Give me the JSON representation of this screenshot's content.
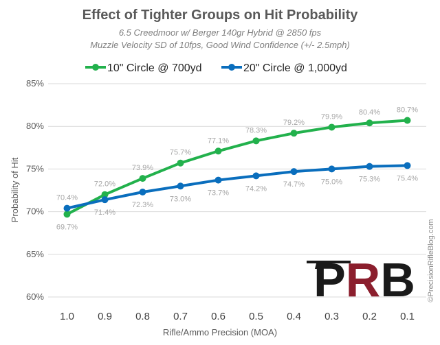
{
  "chart_data": {
    "type": "line",
    "title": "Effect of Tighter Groups on Hit Probability",
    "subtitle_lines": [
      "6.5 Creedmoor w/ Berger 140gr Hybrid @ 2850 fps",
      "Muzzle Velocity SD of 10fps, Good Wind Confidence (+/- 2.5mph)"
    ],
    "xlabel": "Rifle/Ammo Precision (MOA)",
    "ylabel": "Probability of Hit",
    "categories": [
      "1.0",
      "0.9",
      "0.8",
      "0.7",
      "0.6",
      "0.5",
      "0.4",
      "0.3",
      "0.2",
      "0.1"
    ],
    "ylim": [
      60,
      85
    ],
    "yticks": [
      60,
      65,
      70,
      75,
      80,
      85
    ],
    "ytick_labels": [
      "60%",
      "65%",
      "70%",
      "75%",
      "80%",
      "85%"
    ],
    "grid": true,
    "legend_position": "top",
    "series": [
      {
        "name": "10\" Circle @ 700yd",
        "color": "#22b14c",
        "values": [
          69.7,
          72.0,
          73.9,
          75.7,
          77.1,
          78.3,
          79.2,
          79.9,
          80.4,
          80.7
        ],
        "labels": [
          "69.7%",
          "72.0%",
          "73.9%",
          "75.7%",
          "77.1%",
          "78.3%",
          "79.2%",
          "79.9%",
          "80.4%",
          "80.7%"
        ]
      },
      {
        "name": "20\" Circle @ 1,000yd",
        "color": "#0a6ebd",
        "values": [
          70.4,
          71.4,
          72.3,
          73.0,
          73.7,
          74.2,
          74.7,
          75.0,
          75.3,
          75.4
        ],
        "labels": [
          "70.4%",
          "71.4%",
          "72.3%",
          "73.0%",
          "73.7%",
          "74.2%",
          "74.7%",
          "75.0%",
          "75.3%",
          "75.4%"
        ]
      }
    ]
  },
  "logo": {
    "text": "PRB",
    "colors": {
      "dark": "#1a1a1a",
      "red": "#8b1e2d"
    }
  },
  "watermark": "©PrecisionRifleBlog.com"
}
